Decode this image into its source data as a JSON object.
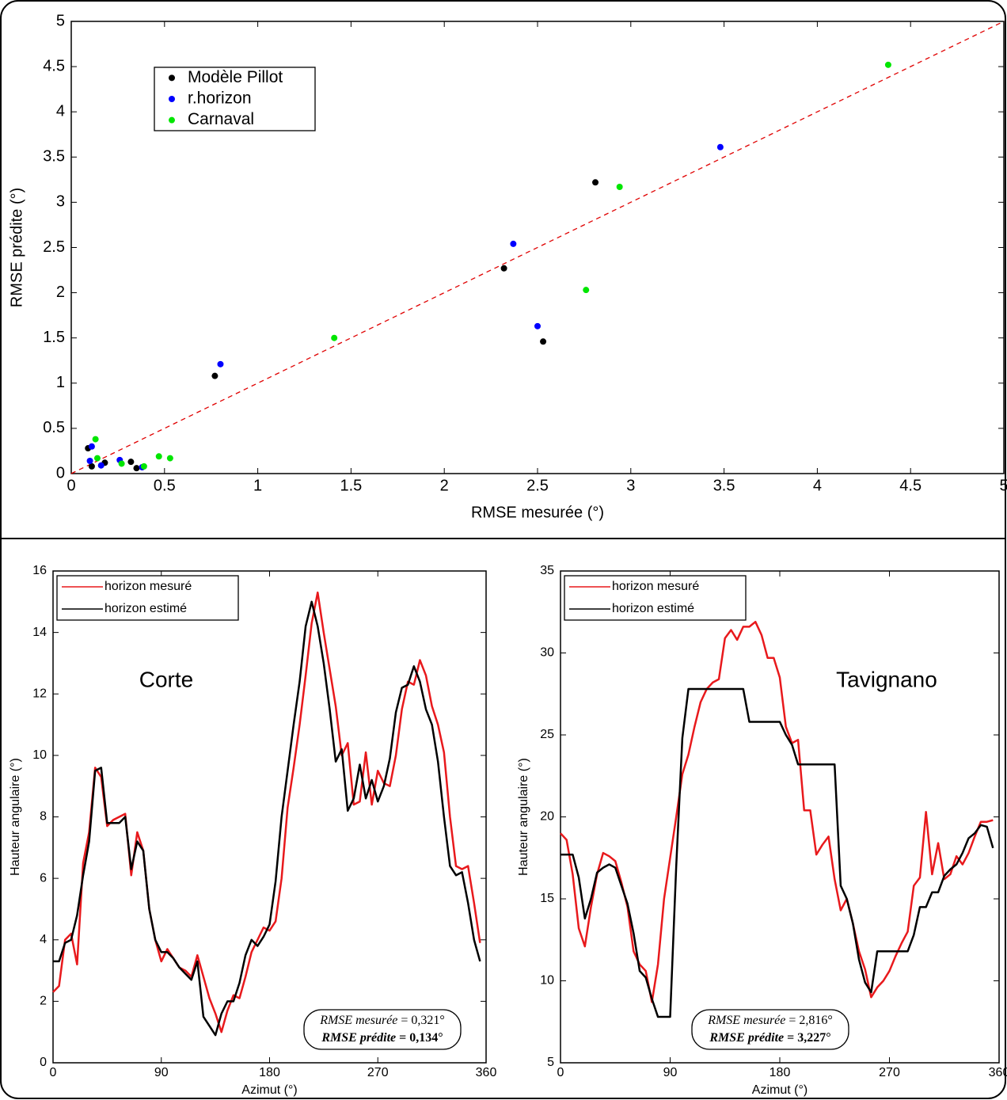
{
  "chart_data": [
    {
      "type": "scatter",
      "xlabel": "RMSE mesurée (°)",
      "ylabel": "RMSE prédite (°)",
      "xlim": [
        0,
        5
      ],
      "ylim": [
        0,
        5
      ],
      "xticks": [
        0,
        0.5,
        1,
        1.5,
        2,
        2.5,
        3,
        3.5,
        4,
        4.5,
        5
      ],
      "yticks": [
        0,
        0.5,
        1,
        1.5,
        2,
        2.5,
        3,
        3.5,
        4,
        4.5,
        5
      ],
      "identity_line": {
        "color": "#e00000",
        "style": "dashed"
      },
      "legend": "upper left",
      "series": [
        {
          "name": "Modèle Pillot",
          "color": "#000000",
          "x": [
            0.09,
            0.11,
            0.18,
            0.32,
            0.35,
            0.77,
            2.32,
            2.53,
            2.81
          ],
          "y": [
            0.28,
            0.08,
            0.12,
            0.13,
            0.06,
            1.08,
            2.27,
            1.46,
            3.22
          ]
        },
        {
          "name": "r.horizon",
          "color": "#0000ff",
          "x": [
            0.1,
            0.11,
            0.16,
            0.26,
            0.38,
            0.8,
            2.37,
            2.5,
            3.48
          ],
          "y": [
            0.14,
            0.3,
            0.09,
            0.15,
            0.07,
            1.21,
            2.54,
            1.63,
            3.61
          ]
        },
        {
          "name": "Carnaval",
          "color": "#00e600",
          "x": [
            0.13,
            0.14,
            0.27,
            0.39,
            0.47,
            0.53,
            1.41,
            2.76,
            2.94,
            4.38
          ],
          "y": [
            0.38,
            0.17,
            0.11,
            0.08,
            0.19,
            0.17,
            1.5,
            2.03,
            3.17,
            4.52
          ]
        }
      ]
    },
    {
      "type": "line",
      "title": "Corte",
      "xlabel": "Azimut (°)",
      "ylabel": "Hauteur angulaire (°)",
      "xlim": [
        0,
        360
      ],
      "ylim": [
        0,
        16
      ],
      "xticks": [
        0,
        90,
        180,
        270,
        360
      ],
      "yticks": [
        0,
        2,
        4,
        6,
        8,
        10,
        12,
        14,
        16
      ],
      "legend": "upper left",
      "x": [
        0,
        5,
        10,
        15,
        20,
        25,
        30,
        35,
        40,
        45,
        50,
        55,
        60,
        65,
        70,
        75,
        80,
        85,
        90,
        95,
        100,
        105,
        110,
        115,
        120,
        125,
        130,
        135,
        140,
        145,
        150,
        155,
        160,
        165,
        170,
        175,
        180,
        185,
        190,
        195,
        200,
        205,
        210,
        215,
        220,
        225,
        230,
        235,
        240,
        245,
        250,
        255,
        260,
        265,
        270,
        275,
        280,
        285,
        290,
        295,
        300,
        305,
        310,
        315,
        320,
        325,
        330,
        335,
        340,
        345,
        350,
        355
      ],
      "series": [
        {
          "name": "horizon mesuré",
          "color": "#e8191c",
          "values": [
            2.3,
            2.5,
            4.0,
            4.2,
            3.2,
            6.5,
            7.5,
            9.6,
            9.3,
            7.7,
            7.9,
            8.0,
            8.1,
            6.1,
            7.5,
            6.9,
            5.0,
            4.0,
            3.3,
            3.7,
            3.4,
            3.1,
            3.0,
            2.8,
            3.5,
            2.8,
            2.1,
            1.6,
            1.0,
            1.7,
            2.2,
            2.1,
            2.8,
            3.6,
            4.0,
            4.4,
            4.3,
            4.6,
            6.0,
            8.3,
            9.6,
            11.0,
            12.6,
            14.3,
            15.3,
            14.0,
            12.8,
            11.6,
            10.0,
            10.4,
            8.4,
            8.5,
            10.1,
            8.4,
            9.5,
            9.1,
            9.0,
            10.0,
            11.5,
            12.4,
            12.3,
            13.1,
            12.6,
            11.6,
            11.0,
            10.1,
            8.0,
            6.4,
            6.3,
            6.4,
            5.2,
            3.9
          ]
        },
        {
          "name": "horizon estimé",
          "color": "#000000",
          "values": [
            3.3,
            3.3,
            3.9,
            4.0,
            4.8,
            6.1,
            7.2,
            9.5,
            9.6,
            7.8,
            7.8,
            7.8,
            8.0,
            6.3,
            7.2,
            6.9,
            5.0,
            4.0,
            3.6,
            3.6,
            3.4,
            3.1,
            2.9,
            2.7,
            3.3,
            1.5,
            1.2,
            0.9,
            1.6,
            2.0,
            2.0,
            2.6,
            3.5,
            4.0,
            3.8,
            4.1,
            4.5,
            5.9,
            8.0,
            9.5,
            11.0,
            12.4,
            14.2,
            15.0,
            14.2,
            13.0,
            11.5,
            9.8,
            10.2,
            8.2,
            8.6,
            9.7,
            8.6,
            9.2,
            8.5,
            9.0,
            9.9,
            11.4,
            12.2,
            12.3,
            12.9,
            12.4,
            11.5,
            11.0,
            9.8,
            8.0,
            6.4,
            6.1,
            6.2,
            5.2,
            4.0,
            3.3
          ]
        }
      ],
      "annotations": [
        {
          "label": "RMSE mesurée",
          "text": "= 0,321°",
          "bold": false
        },
        {
          "label": "RMSE prédite",
          "text": "= 0,134°",
          "bold": true
        }
      ]
    },
    {
      "type": "line",
      "title": "Tavignano",
      "xlabel": "Azimut (°)",
      "ylabel": "Hauteur angulaire (°)",
      "xlim": [
        0,
        360
      ],
      "ylim": [
        5,
        35
      ],
      "xticks": [
        0,
        90,
        180,
        270,
        360
      ],
      "yticks": [
        5,
        10,
        15,
        20,
        25,
        30,
        35
      ],
      "legend": "upper left",
      "x": [
        0,
        5,
        10,
        15,
        20,
        25,
        30,
        35,
        40,
        45,
        50,
        55,
        60,
        65,
        70,
        75,
        80,
        85,
        90,
        95,
        100,
        105,
        110,
        115,
        120,
        125,
        130,
        135,
        140,
        145,
        150,
        155,
        160,
        165,
        170,
        175,
        180,
        185,
        190,
        195,
        200,
        205,
        210,
        215,
        220,
        225,
        230,
        235,
        240,
        245,
        250,
        255,
        260,
        265,
        270,
        275,
        280,
        285,
        290,
        295,
        300,
        305,
        310,
        315,
        320,
        325,
        330,
        335,
        340,
        345,
        350,
        355
      ],
      "series": [
        {
          "name": "horizon mesuré",
          "color": "#e8191c",
          "values": [
            19.0,
            18.6,
            16.5,
            13.2,
            12.1,
            14.5,
            16.5,
            17.8,
            17.6,
            17.3,
            16.0,
            14.5,
            11.8,
            11.0,
            10.6,
            8.7,
            11.0,
            15.0,
            17.5,
            20.0,
            22.6,
            23.8,
            25.5,
            27.0,
            27.8,
            28.2,
            28.4,
            30.9,
            31.4,
            30.8,
            31.6,
            31.6,
            31.9,
            31.1,
            29.7,
            29.7,
            28.5,
            25.5,
            24.5,
            24.7,
            20.4,
            20.4,
            17.7,
            18.3,
            18.8,
            16.2,
            14.3,
            15.0,
            13.5,
            11.8,
            10.7,
            9.0,
            9.6,
            10.0,
            10.6,
            11.5,
            12.3,
            13.0,
            15.8,
            16.3,
            20.3,
            16.5,
            18.4,
            16.2,
            16.5,
            17.6,
            17.1,
            17.8,
            18.8,
            19.7,
            19.7,
            19.8
          ]
        },
        {
          "name": "horizon estimé",
          "color": "#000000",
          "values": [
            17.7,
            17.7,
            17.7,
            16.3,
            13.8,
            15.0,
            16.6,
            16.9,
            17.1,
            16.9,
            15.8,
            14.7,
            12.9,
            10.6,
            10.2,
            8.9,
            7.8,
            7.8,
            7.8,
            17.0,
            24.8,
            27.8,
            27.8,
            27.8,
            27.8,
            27.8,
            27.8,
            27.8,
            27.8,
            27.8,
            27.8,
            25.8,
            25.8,
            25.8,
            25.8,
            25.8,
            25.8,
            25.0,
            24.4,
            23.2,
            23.2,
            23.2,
            23.2,
            23.2,
            23.2,
            23.2,
            15.8,
            15.0,
            13.5,
            11.3,
            9.9,
            9.3,
            11.8,
            11.8,
            11.8,
            11.8,
            11.8,
            11.8,
            12.8,
            14.5,
            14.5,
            15.4,
            15.4,
            16.4,
            16.8,
            17.1,
            17.8,
            18.7,
            19.0,
            19.5,
            19.4,
            18.1
          ]
        }
      ],
      "annotations": [
        {
          "label": "RMSE mesurée",
          "text": "= 2,816°",
          "bold": false
        },
        {
          "label": "RMSE prédite",
          "text": "= 3,227°",
          "bold": true
        }
      ]
    }
  ]
}
